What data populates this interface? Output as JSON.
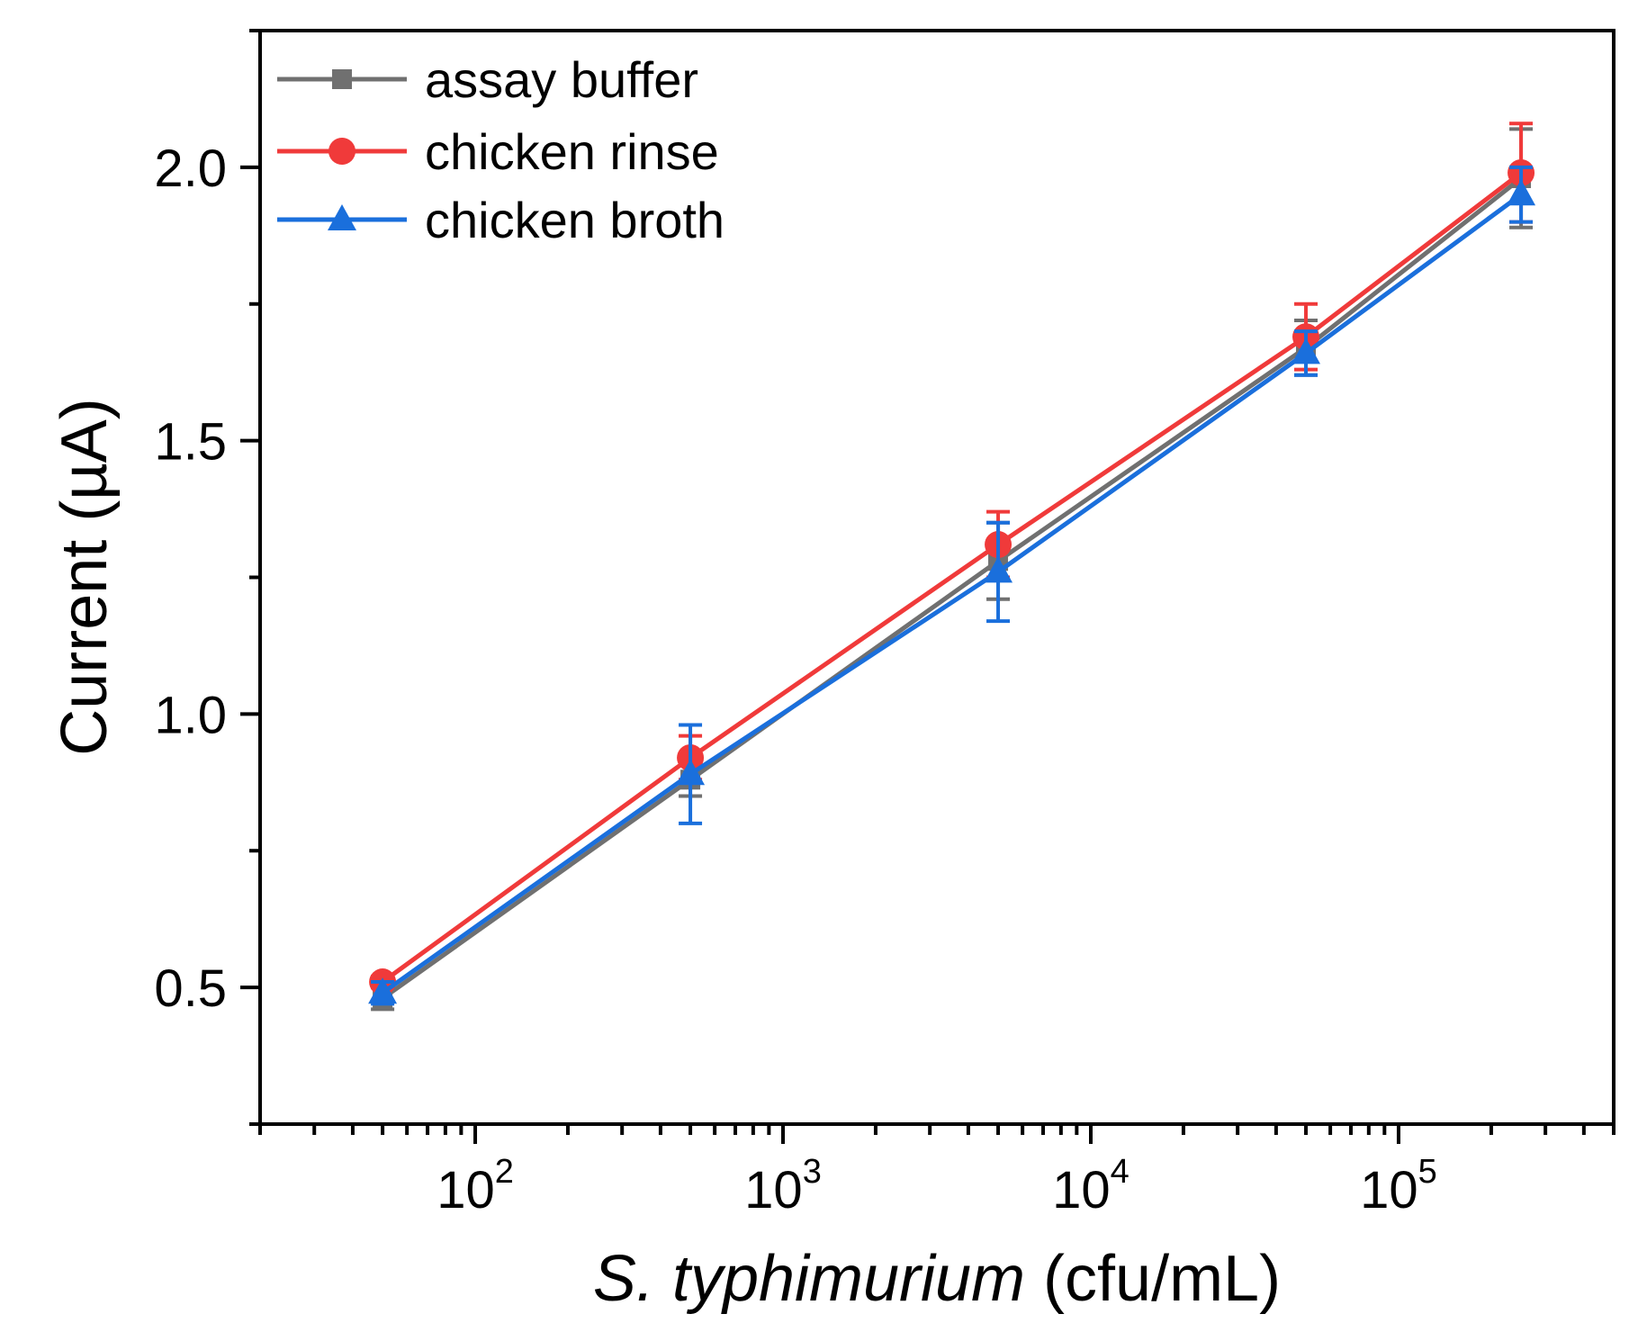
{
  "chart_data": {
    "type": "line",
    "title": "",
    "xlabel_italic": "S. typhimurium",
    "xlabel_rest": " (cfu/mL)",
    "ylabel": "Current (µA)",
    "x_scale": "log",
    "xlim": [
      20,
      500000
    ],
    "ylim": [
      0.25,
      2.25
    ],
    "grid": false,
    "legend_position": "top-left",
    "x_ticks": [
      {
        "base": "10",
        "exp": "2",
        "value": 100
      },
      {
        "base": "10",
        "exp": "3",
        "value": 1000
      },
      {
        "base": "10",
        "exp": "4",
        "value": 10000
      },
      {
        "base": "10",
        "exp": "5",
        "value": 100000
      }
    ],
    "y_ticks": [
      {
        "label": "0.5",
        "value": 0.5
      },
      {
        "label": "1.0",
        "value": 1.0
      },
      {
        "label": "1.5",
        "value": 1.5
      },
      {
        "label": "2.0",
        "value": 2.0
      }
    ],
    "x": [
      50,
      500,
      5000,
      50000,
      250000
    ],
    "series": [
      {
        "name": "assay buffer",
        "color": "#707070",
        "marker": "square",
        "y": [
          0.48,
          0.88,
          1.28,
          1.67,
          1.98
        ],
        "err": [
          0.02,
          0.03,
          0.07,
          0.05,
          0.09
        ]
      },
      {
        "name": "chicken rinse",
        "color": "#f03a3a",
        "marker": "circle",
        "y": [
          0.51,
          0.92,
          1.31,
          1.69,
          1.99
        ],
        "err": [
          0.01,
          0.04,
          0.06,
          0.06,
          0.09
        ]
      },
      {
        "name": "chicken broth",
        "color": "#1a6fdc",
        "marker": "triangle",
        "y": [
          0.49,
          0.89,
          1.26,
          1.66,
          1.95
        ],
        "err": [
          0.02,
          0.09,
          0.09,
          0.04,
          0.05
        ]
      }
    ]
  }
}
